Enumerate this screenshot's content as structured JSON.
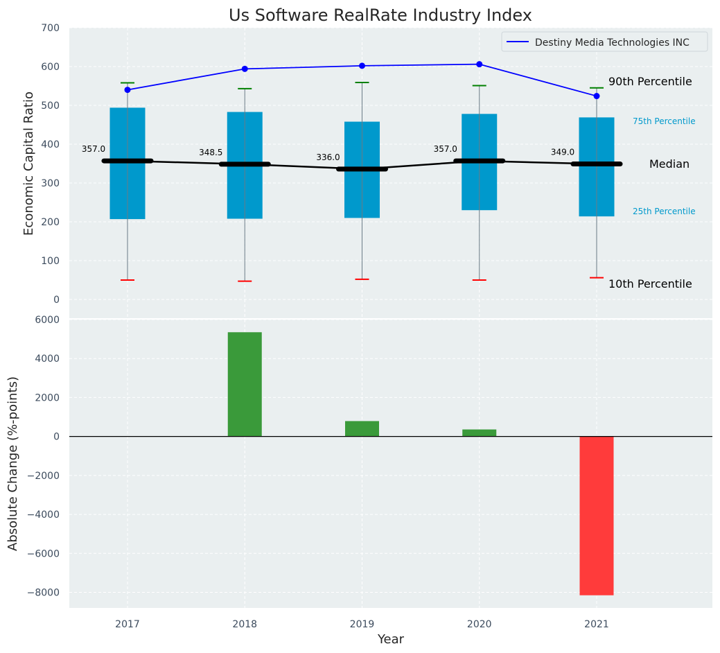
{
  "chart_data": [
    {
      "type": "box",
      "title": "Us Software RealRate Industry Index",
      "ylabel": "Economic Capital Ratio",
      "ylim": [
        0,
        700
      ],
      "yticks": [
        0,
        100,
        200,
        300,
        400,
        500,
        600,
        700
      ],
      "categories": [
        "2017",
        "2018",
        "2019",
        "2020",
        "2021"
      ],
      "p10": [
        50,
        47,
        52,
        50,
        56
      ],
      "p25": [
        207,
        208,
        210,
        230,
        214
      ],
      "median": [
        357.0,
        348.5,
        336.0,
        357.0,
        349.0
      ],
      "median_labels": [
        "357.0",
        "348.5",
        "336.0",
        "357.0",
        "349.0"
      ],
      "p75": [
        494,
        483,
        458,
        478,
        469
      ],
      "p90": [
        558,
        543,
        559,
        551,
        545
      ],
      "series": [
        {
          "name": "Destiny Media Technologies INC",
          "values": [
            540,
            594,
            602,
            606,
            524
          ]
        }
      ],
      "annotations": {
        "p90": "90th Percentile",
        "p75": "75th Percentile",
        "median": "Median",
        "p25": "25th Percentile",
        "p10": "10th Percentile"
      },
      "colors": {
        "box": "#0099cc",
        "median": "#000000",
        "series": "#0000ff",
        "p90_cap": "#008000",
        "p10_cap": "#ff0000",
        "plot_bg": "#eaeff0"
      },
      "grid": true,
      "legend": "top-right"
    },
    {
      "type": "bar",
      "ylabel": "Absolute Change (%-points)",
      "xlabel": "Year",
      "ylim": [
        -8800,
        6000
      ],
      "yticks": [
        -8000,
        -6000,
        -4000,
        -2000,
        0,
        2000,
        4000,
        6000
      ],
      "ytick_labels": [
        "−8000",
        "−6000",
        "−4000",
        "−2000",
        "0",
        "2000",
        "4000",
        "6000"
      ],
      "categories": [
        "2017",
        "2018",
        "2019",
        "2020",
        "2021"
      ],
      "values": [
        0,
        5350,
        790,
        360,
        -8150
      ],
      "colors": {
        "positive": "#3a9a3a",
        "negative": "#ff3b3b"
      },
      "grid": true
    }
  ]
}
